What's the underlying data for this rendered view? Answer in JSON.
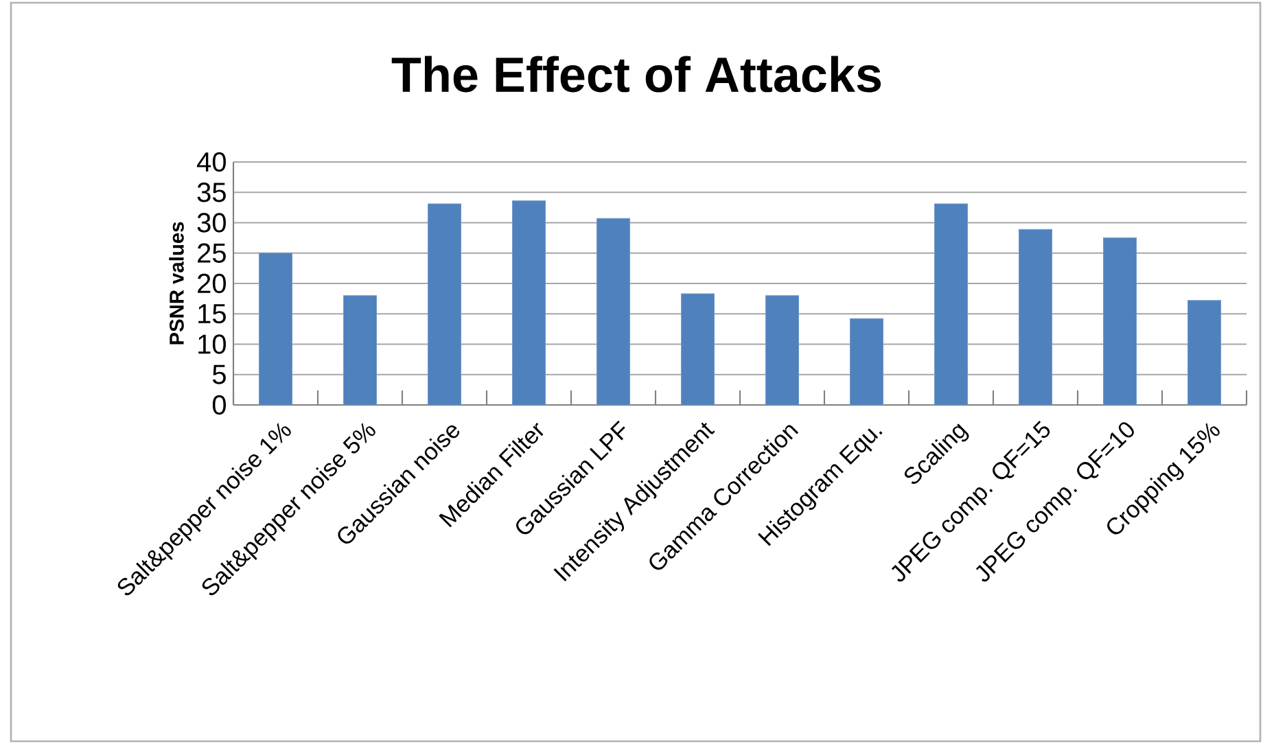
{
  "chart_data": {
    "type": "bar",
    "title": "The Effect of Attacks",
    "ylabel": "PSNR values",
    "categories": [
      "Salt&pepper noise 1%",
      "Salt&pepper noise 5%",
      "Gaussian noise",
      "Median Filter",
      "Gaussian LPF",
      "Intensity Adjustment",
      "Gamma Correction",
      "Histogram Equ.",
      "Scaling",
      "JPEG comp. QF=15",
      "JPEG comp. QF=10",
      "Cropping 15%"
    ],
    "values": [
      25.0,
      18.0,
      33.1,
      33.6,
      30.7,
      18.3,
      18.0,
      14.2,
      33.1,
      28.9,
      27.5,
      17.2
    ],
    "color": "#4f81bd",
    "ylim": [
      0,
      40
    ],
    "yticks": [
      0,
      5,
      10,
      15,
      20,
      25,
      30,
      35,
      40
    ],
    "grid": "y"
  }
}
